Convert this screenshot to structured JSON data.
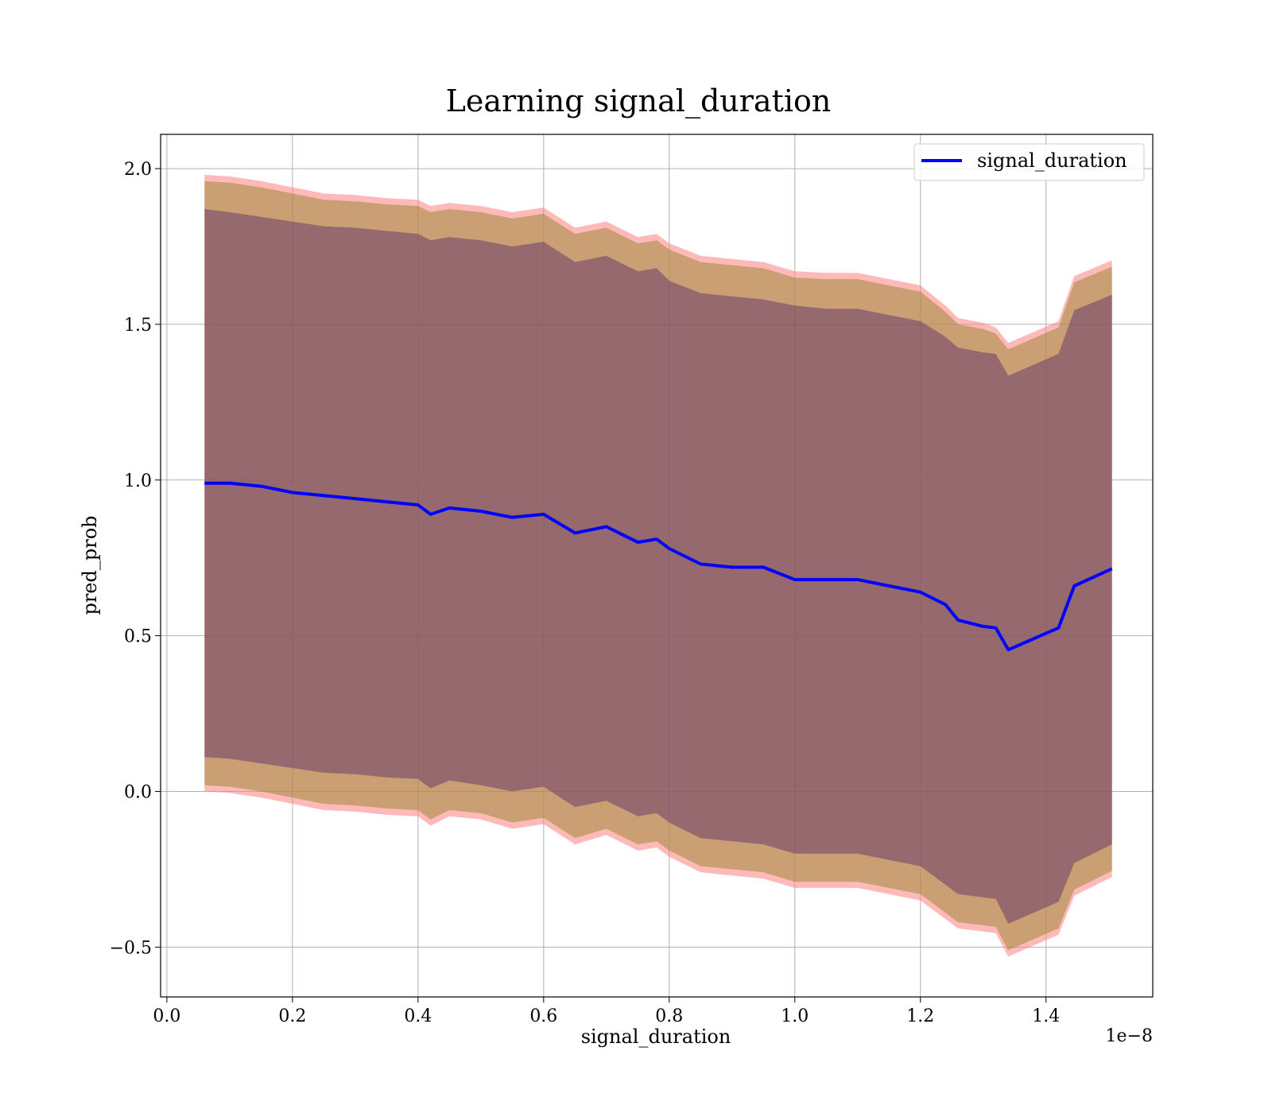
{
  "chart_data": {
    "type": "line",
    "title": "Learning signal_duration",
    "xlabel": "signal_duration",
    "ylabel": "pred_prob",
    "x_offset_label": "1e−8",
    "xlim": [
      -1e-10,
      1.57e-08
    ],
    "ylim": [
      -0.66,
      2.11
    ],
    "grid": true,
    "legend_position": "top-right",
    "x_ticks": [
      0.0,
      2e-09,
      4e-09,
      6e-09,
      8e-09,
      1e-08,
      1.2e-08,
      1.4e-08
    ],
    "x_tick_labels": [
      "0.0",
      "0.2",
      "0.4",
      "0.6",
      "0.8",
      "1.0",
      "1.2",
      "1.4"
    ],
    "y_ticks": [
      -0.5,
      0.0,
      0.5,
      1.0,
      1.5,
      2.0
    ],
    "y_tick_labels": [
      "−0.5",
      "0.0",
      "0.5",
      "1.0",
      "1.5",
      "2.0"
    ],
    "x": [
      6e-10,
      1e-09,
      1.5e-09,
      2e-09,
      2.5e-09,
      3e-09,
      3.5e-09,
      4e-09,
      4.2e-09,
      4.5e-09,
      5e-09,
      5.5e-09,
      6e-09,
      6.5e-09,
      7e-09,
      7.5e-09,
      7.8e-09,
      8e-09,
      8.5e-09,
      9e-09,
      9.5e-09,
      1e-08,
      1.05e-08,
      1.1e-08,
      1.15e-08,
      1.2e-08,
      1.24e-08,
      1.26e-08,
      1.3e-08,
      1.32e-08,
      1.34e-08,
      1.42e-08,
      1.445e-08,
      1.505e-08
    ],
    "series": [
      {
        "name": "signal_duration",
        "color": "#0000ff",
        "values": [
          0.99,
          0.99,
          0.98,
          0.96,
          0.95,
          0.94,
          0.93,
          0.92,
          0.89,
          0.91,
          0.9,
          0.88,
          0.89,
          0.83,
          0.85,
          0.8,
          0.81,
          0.78,
          0.73,
          0.72,
          0.72,
          0.68,
          0.68,
          0.68,
          0.66,
          0.64,
          0.6,
          0.55,
          0.53,
          0.525,
          0.455,
          0.525,
          0.66,
          0.715
        ]
      }
    ],
    "bands": [
      {
        "color": "#ff8080",
        "opacity": 0.55,
        "upper": [
          1.98,
          1.975,
          1.96,
          1.94,
          1.92,
          1.915,
          1.905,
          1.9,
          1.88,
          1.89,
          1.88,
          1.86,
          1.875,
          1.81,
          1.83,
          1.78,
          1.79,
          1.76,
          1.72,
          1.71,
          1.7,
          1.67,
          1.665,
          1.665,
          1.645,
          1.625,
          1.56,
          1.52,
          1.505,
          1.49,
          1.44,
          1.51,
          1.655,
          1.705
        ],
        "lower": [
          0.0,
          -0.005,
          -0.02,
          -0.04,
          -0.06,
          -0.065,
          -0.075,
          -0.08,
          -0.11,
          -0.08,
          -0.09,
          -0.12,
          -0.105,
          -0.17,
          -0.14,
          -0.19,
          -0.18,
          -0.21,
          -0.26,
          -0.27,
          -0.28,
          -0.31,
          -0.31,
          -0.31,
          -0.33,
          -0.35,
          -0.41,
          -0.44,
          -0.45,
          -0.455,
          -0.53,
          -0.46,
          -0.335,
          -0.275
        ]
      },
      {
        "color": "#9c8a3a",
        "opacity": 0.55,
        "upper": [
          1.96,
          1.955,
          1.94,
          1.92,
          1.9,
          1.895,
          1.885,
          1.88,
          1.86,
          1.87,
          1.86,
          1.84,
          1.855,
          1.79,
          1.81,
          1.76,
          1.77,
          1.74,
          1.7,
          1.69,
          1.68,
          1.65,
          1.645,
          1.645,
          1.625,
          1.605,
          1.54,
          1.5,
          1.485,
          1.47,
          1.42,
          1.49,
          1.635,
          1.685
        ],
        "lower": [
          0.02,
          0.015,
          0.0,
          -0.02,
          -0.04,
          -0.045,
          -0.055,
          -0.06,
          -0.09,
          -0.06,
          -0.07,
          -0.1,
          -0.085,
          -0.15,
          -0.12,
          -0.17,
          -0.16,
          -0.19,
          -0.24,
          -0.25,
          -0.26,
          -0.29,
          -0.29,
          -0.29,
          -0.31,
          -0.33,
          -0.39,
          -0.42,
          -0.43,
          -0.435,
          -0.51,
          -0.44,
          -0.315,
          -0.255
        ]
      },
      {
        "color": "#6b3c6b",
        "opacity": 0.55,
        "upper": [
          1.87,
          1.86,
          1.845,
          1.83,
          1.815,
          1.81,
          1.8,
          1.79,
          1.77,
          1.78,
          1.77,
          1.75,
          1.765,
          1.7,
          1.72,
          1.67,
          1.68,
          1.64,
          1.6,
          1.59,
          1.58,
          1.56,
          1.55,
          1.55,
          1.53,
          1.51,
          1.46,
          1.425,
          1.41,
          1.405,
          1.335,
          1.405,
          1.545,
          1.595
        ],
        "lower": [
          0.11,
          0.105,
          0.09,
          0.075,
          0.06,
          0.055,
          0.045,
          0.04,
          0.01,
          0.035,
          0.02,
          0.0,
          0.015,
          -0.05,
          -0.03,
          -0.08,
          -0.07,
          -0.1,
          -0.15,
          -0.16,
          -0.17,
          -0.2,
          -0.2,
          -0.2,
          -0.22,
          -0.24,
          -0.3,
          -0.33,
          -0.34,
          -0.345,
          -0.425,
          -0.355,
          -0.23,
          -0.17
        ]
      }
    ]
  }
}
